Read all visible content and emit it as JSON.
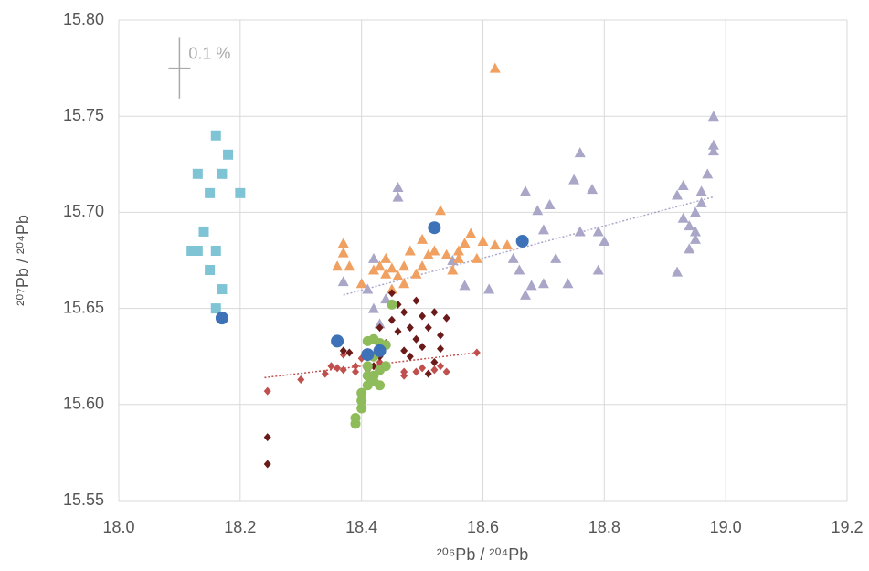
{
  "chart_data": {
    "type": "scatter",
    "xlabel": "²⁰⁶Pb / ²⁰⁴Pb",
    "ylabel": "²⁰⁷Pb / ²⁰⁴Pb",
    "xlim": [
      18.0,
      19.2
    ],
    "ylim": [
      15.55,
      15.8
    ],
    "xticks": [
      {
        "value": 18.0,
        "label": "18.0"
      },
      18.2,
      18.4,
      18.6,
      18.8,
      {
        "value": 19.0,
        "label": "19.0"
      },
      19.2
    ],
    "yticks": [
      15.55,
      {
        "value": 15.6,
        "label": "15.60"
      },
      15.65,
      {
        "value": 15.7,
        "label": "15.70"
      },
      15.75,
      {
        "value": 15.8,
        "label": "15.80"
      }
    ],
    "grid": true,
    "error_cross": {
      "x": 18.1,
      "y": 15.775,
      "percent": 0.1,
      "label": "0.1 %"
    },
    "series": [
      {
        "color": "#a9a6c8",
        "marker": "triangle",
        "x": [
          18.46,
          18.46,
          18.37,
          18.42,
          18.41,
          18.44,
          18.42,
          18.43,
          18.55,
          18.57,
          18.61,
          18.65,
          18.66,
          18.67,
          18.69,
          18.7,
          18.71,
          18.68,
          18.7,
          18.67,
          18.72,
          18.75,
          18.76,
          18.76,
          18.78,
          18.79,
          18.8,
          18.74,
          18.79,
          18.92,
          18.93,
          18.93,
          18.94,
          18.92,
          18.95,
          18.95,
          18.96,
          18.96,
          18.97,
          18.98,
          18.98,
          18.98,
          18.95,
          18.94
        ],
        "y": [
          15.713,
          15.708,
          15.664,
          15.676,
          15.66,
          15.655,
          15.65,
          15.642,
          15.675,
          15.662,
          15.66,
          15.676,
          15.67,
          15.711,
          15.701,
          15.691,
          15.704,
          15.662,
          15.663,
          15.657,
          15.676,
          15.717,
          15.731,
          15.69,
          15.712,
          15.69,
          15.685,
          15.663,
          15.67,
          15.709,
          15.714,
          15.697,
          15.681,
          15.669,
          15.69,
          15.7,
          15.705,
          15.711,
          15.72,
          15.735,
          15.75,
          15.732,
          15.686,
          15.693
        ],
        "trendline": {
          "x": [
            18.37,
            18.98
          ],
          "y": [
            15.657,
            15.708
          ]
        }
      },
      {
        "color": "#f0a060",
        "marker": "triangle",
        "x": [
          18.62,
          18.37,
          18.37,
          18.36,
          18.38,
          18.4,
          18.42,
          18.43,
          18.44,
          18.45,
          18.46,
          18.47,
          18.48,
          18.49,
          18.5,
          18.51,
          18.52,
          18.53,
          18.54,
          18.55,
          18.56,
          18.57,
          18.58,
          18.59,
          18.6,
          18.62,
          18.64,
          18.45,
          18.47,
          18.5,
          18.44,
          18.56
        ],
        "y": [
          15.775,
          15.684,
          15.679,
          15.672,
          15.672,
          15.663,
          15.67,
          15.672,
          15.668,
          15.671,
          15.667,
          15.672,
          15.68,
          15.668,
          15.686,
          15.678,
          15.68,
          15.701,
          15.678,
          15.67,
          15.68,
          15.684,
          15.689,
          15.676,
          15.685,
          15.683,
          15.683,
          15.66,
          15.663,
          15.672,
          15.676,
          15.676
        ]
      },
      {
        "color": "#7fc4d4",
        "marker": "square",
        "x": [
          18.16,
          18.18,
          18.13,
          18.17,
          18.15,
          18.2,
          18.14,
          18.12,
          18.13,
          18.16,
          18.15,
          18.17,
          18.16
        ],
        "y": [
          15.74,
          15.73,
          15.72,
          15.72,
          15.71,
          15.71,
          15.69,
          15.68,
          15.68,
          15.68,
          15.67,
          15.66,
          15.65
        ]
      },
      {
        "color": "#c0504d",
        "marker": "diamond",
        "x": [
          18.245,
          18.3,
          18.34,
          18.35,
          18.36,
          18.37,
          18.37,
          18.39,
          18.39,
          18.4,
          18.41,
          18.43,
          18.44,
          18.47,
          18.49,
          18.5,
          18.52,
          18.53,
          18.54,
          18.59,
          18.47
        ],
        "y": [
          15.607,
          15.613,
          15.616,
          15.62,
          15.619,
          15.618,
          15.626,
          15.62,
          15.617,
          15.624,
          15.618,
          15.622,
          15.62,
          15.617,
          15.617,
          15.619,
          15.618,
          15.62,
          15.617,
          15.627,
          15.615
        ],
        "trendline": {
          "x": [
            18.24,
            18.59
          ],
          "y": [
            15.614,
            15.627
          ]
        }
      },
      {
        "color": "#6b1a1a",
        "marker": "diamond",
        "x": [
          18.245,
          18.245,
          18.37,
          18.38,
          18.42,
          18.43,
          18.44,
          18.45,
          18.46,
          18.46,
          18.47,
          18.47,
          18.48,
          18.48,
          18.49,
          18.49,
          18.5,
          18.5,
          18.51,
          18.52,
          18.52,
          18.53,
          18.53,
          18.54,
          18.45,
          18.43,
          18.51
        ],
        "y": [
          15.583,
          15.569,
          15.628,
          15.627,
          15.62,
          15.64,
          15.632,
          15.644,
          15.652,
          15.638,
          15.628,
          15.648,
          15.64,
          15.625,
          15.654,
          15.634,
          15.646,
          15.63,
          15.64,
          15.622,
          15.648,
          15.636,
          15.629,
          15.645,
          15.658,
          15.625,
          15.616
        ]
      },
      {
        "color": "#8fbc5a",
        "marker": "circle",
        "x": [
          18.39,
          18.39,
          18.4,
          18.4,
          18.4,
          18.41,
          18.42,
          18.42,
          18.41,
          18.42,
          18.43,
          18.41,
          18.42,
          18.43,
          18.44,
          18.44,
          18.45,
          18.43,
          18.41
        ],
        "y": [
          15.593,
          15.59,
          15.598,
          15.602,
          15.606,
          15.61,
          15.615,
          15.612,
          15.62,
          15.625,
          15.618,
          15.633,
          15.634,
          15.632,
          15.631,
          15.62,
          15.652,
          15.61,
          15.615
        ]
      },
      {
        "color": "#3d72b8",
        "marker": "circle-large",
        "x": [
          18.17,
          18.36,
          18.41,
          18.43,
          18.52,
          18.665
        ],
        "y": [
          15.645,
          15.633,
          15.626,
          15.628,
          15.692,
          15.685
        ]
      }
    ]
  }
}
